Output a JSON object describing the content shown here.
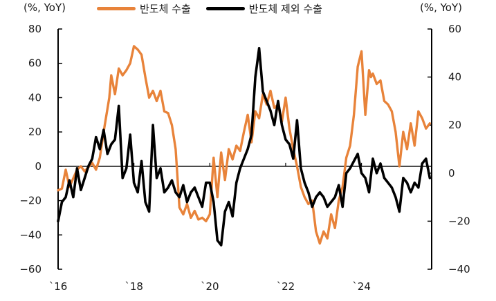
{
  "chart_data": {
    "type": "line",
    "title": "",
    "legend": [
      "반도체 수출",
      "반도체 제외 수출"
    ],
    "legend_position": "top",
    "left_axis": {
      "label": "(%, YoY)",
      "range": [
        -60,
        80
      ],
      "ticks": [
        80,
        60,
        40,
        20,
        0,
        -20,
        -40,
        -60
      ]
    },
    "right_axis": {
      "label": "(%, YoY)",
      "range": [
        -40,
        60
      ],
      "ticks": [
        60,
        40,
        20,
        0,
        -20,
        -40
      ]
    },
    "x_axis": {
      "tick_labels": [
        "`16",
        "`18",
        "`20",
        "`22",
        "`24"
      ],
      "range": [
        "2016-01",
        "2025-10"
      ]
    },
    "grid": false,
    "colors": {
      "semiconductor": "#E8833A",
      "ex_semiconductor": "#000000"
    },
    "series": [
      {
        "name": "반도체 수출",
        "axis": "left",
        "x": [
          2016.0,
          2016.1,
          2016.2,
          2016.3,
          2016.5,
          2016.6,
          2016.7,
          2016.9,
          2017.0,
          2017.1,
          2017.2,
          2017.35,
          2017.4,
          2017.5,
          2017.6,
          2017.7,
          2017.8,
          2017.9,
          2018.0,
          2018.1,
          2018.2,
          2018.3,
          2018.4,
          2018.5,
          2018.6,
          2018.7,
          2018.8,
          2018.9,
          2019.0,
          2019.1,
          2019.2,
          2019.3,
          2019.4,
          2019.5,
          2019.6,
          2019.7,
          2019.8,
          2019.9,
          2020.0,
          2020.1,
          2020.2,
          2020.3,
          2020.4,
          2020.5,
          2020.6,
          2020.7,
          2020.8,
          2020.9,
          2021.0,
          2021.1,
          2021.2,
          2021.3,
          2021.4,
          2021.5,
          2021.6,
          2021.7,
          2021.8,
          2021.9,
          2022.0,
          2022.1,
          2022.2,
          2022.3,
          2022.4,
          2022.5,
          2022.6,
          2022.7,
          2022.8,
          2022.9,
          2023.0,
          2023.1,
          2023.2,
          2023.3,
          2023.4,
          2023.5,
          2023.6,
          2023.7,
          2023.8,
          2023.9,
          2024.0,
          2024.1,
          2024.2,
          2024.25,
          2024.3,
          2024.4,
          2024.5,
          2024.6,
          2024.7,
          2024.8,
          2024.9,
          2025.0,
          2025.1,
          2025.2,
          2025.3,
          2025.4,
          2025.5,
          2025.6,
          2025.7,
          2025.8
        ],
        "values": [
          -14,
          -13,
          -2,
          -12,
          -2,
          0,
          -3,
          2,
          -2,
          5,
          20,
          40,
          53,
          42,
          57,
          53,
          56,
          60,
          70,
          68,
          65,
          52,
          40,
          44,
          38,
          44,
          32,
          31,
          24,
          10,
          -24,
          -28,
          -22,
          -30,
          -26,
          -31,
          -30,
          -32,
          -28,
          5,
          -18,
          8,
          -8,
          10,
          4,
          12,
          9,
          20,
          30,
          14,
          32,
          28,
          42,
          36,
          44,
          34,
          36,
          26,
          40,
          22,
          10,
          0,
          -12,
          -18,
          -22,
          -20,
          -38,
          -45,
          -38,
          -42,
          -28,
          -36,
          -20,
          -12,
          5,
          12,
          30,
          58,
          67,
          30,
          56,
          52,
          54,
          48,
          50,
          38,
          36,
          32,
          20,
          0,
          20,
          10,
          25,
          12,
          32,
          28,
          22,
          25
        ]
      },
      {
        "name": "반도체 제외 수출",
        "axis": "right",
        "x": [
          2016.0,
          2016.1,
          2016.2,
          2016.3,
          2016.4,
          2016.5,
          2016.6,
          2016.7,
          2016.8,
          2016.9,
          2017.0,
          2017.1,
          2017.2,
          2017.3,
          2017.4,
          2017.5,
          2017.6,
          2017.7,
          2017.8,
          2017.9,
          2018.0,
          2018.1,
          2018.2,
          2018.3,
          2018.4,
          2018.5,
          2018.6,
          2018.7,
          2018.8,
          2018.9,
          2019.0,
          2019.1,
          2019.2,
          2019.3,
          2019.4,
          2019.5,
          2019.6,
          2019.7,
          2019.8,
          2019.9,
          2020.0,
          2020.1,
          2020.2,
          2020.3,
          2020.4,
          2020.5,
          2020.6,
          2020.7,
          2020.8,
          2020.9,
          2021.0,
          2021.1,
          2021.2,
          2021.3,
          2021.4,
          2021.5,
          2021.6,
          2021.7,
          2021.8,
          2021.9,
          2022.0,
          2022.1,
          2022.2,
          2022.3,
          2022.4,
          2022.5,
          2022.6,
          2022.7,
          2022.8,
          2022.9,
          2023.0,
          2023.1,
          2023.2,
          2023.3,
          2023.4,
          2023.5,
          2023.6,
          2023.7,
          2023.8,
          2023.9,
          2024.0,
          2024.1,
          2024.2,
          2024.3,
          2024.4,
          2024.5,
          2024.6,
          2024.7,
          2024.8,
          2024.9,
          2025.0,
          2025.1,
          2025.2,
          2025.3,
          2025.4,
          2025.5,
          2025.6,
          2025.7,
          2025.8
        ],
        "values": [
          -20,
          -12,
          -10,
          -3,
          -10,
          2,
          -7,
          -2,
          3,
          6,
          15,
          10,
          18,
          8,
          12,
          14,
          28,
          -2,
          2,
          16,
          -4,
          -8,
          5,
          -12,
          -16,
          20,
          -2,
          2,
          -8,
          -6,
          -3,
          -8,
          -10,
          -5,
          -12,
          -8,
          -6,
          -10,
          -14,
          -4,
          -4,
          -12,
          -28,
          -30,
          -16,
          -12,
          -18,
          -4,
          2,
          6,
          10,
          16,
          40,
          52,
          34,
          30,
          26,
          20,
          30,
          20,
          14,
          12,
          6,
          22,
          2,
          -4,
          -8,
          -14,
          -10,
          -8,
          -10,
          -14,
          -12,
          -10,
          -5,
          -14,
          0,
          2,
          5,
          8,
          0,
          -2,
          -8,
          6,
          0,
          4,
          -2,
          -4,
          -6,
          -10,
          -16,
          -2,
          -4,
          -8,
          -4,
          -6,
          4,
          6,
          -2
        ]
      }
    ]
  },
  "header": {
    "left_unit": "(%, YoY)",
    "right_unit": "(%, YoY)",
    "legend": [
      {
        "label": "반도체 수출",
        "color": "#E8833A"
      },
      {
        "label": "반도체 제외 수출",
        "color": "#000000"
      }
    ]
  }
}
